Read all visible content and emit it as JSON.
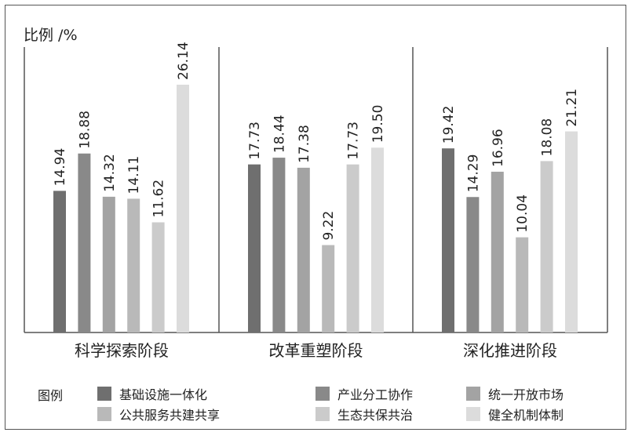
{
  "chart_data": {
    "type": "bar",
    "ylabel": "比例 /%",
    "categories": [
      "科学探索阶段",
      "改革重塑阶段",
      "深化推进阶段"
    ],
    "series": [
      {
        "name": "基础设施一体化",
        "color": "#6f6f6f",
        "values": [
          14.94,
          17.73,
          19.42
        ]
      },
      {
        "name": "产业分工协作",
        "color": "#898989",
        "values": [
          18.88,
          18.44,
          14.29
        ]
      },
      {
        "name": "统一开放市场",
        "color": "#a3a3a3",
        "values": [
          14.32,
          17.38,
          16.96
        ]
      },
      {
        "name": "公共服务共建共享",
        "color": "#b9b9b9",
        "values": [
          14.11,
          9.22,
          10.04
        ]
      },
      {
        "name": "生态共保共治",
        "color": "#cbcbcb",
        "values": [
          11.62,
          17.73,
          18.08
        ]
      },
      {
        "name": "健全机制体制",
        "color": "#dcdcdc",
        "values": [
          26.14,
          19.5,
          21.21
        ]
      }
    ],
    "value_labels": [
      [
        "14.94",
        "18.88",
        "14.32",
        "14.11",
        "11.62",
        "26.14"
      ],
      [
        "17.73",
        "18.44",
        "17.38",
        "9.22",
        "17.73",
        "19.50"
      ],
      [
        "19.42",
        "14.29",
        "16.96",
        "10.04",
        "18.08",
        "21.21"
      ]
    ],
    "legend_title": "图例",
    "legend_placement": "bottom",
    "grid": false
  }
}
